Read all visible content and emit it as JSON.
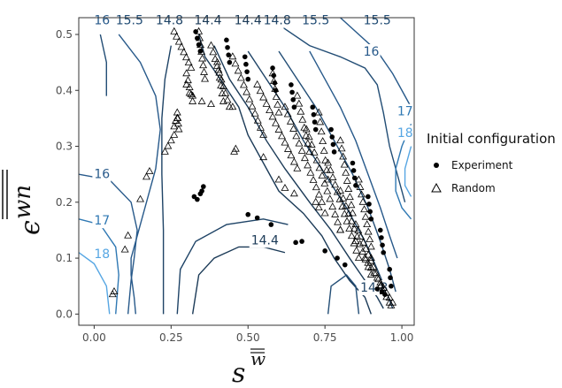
{
  "chart_data": {
    "type": "scatter",
    "title": "",
    "xlabel_base": "s",
    "xlabel_super": "w",
    "ylabel_base": "ϵ",
    "ylabel_super": "wn",
    "xlim": [
      -0.05,
      1.04
    ],
    "ylim": [
      -0.02,
      0.53
    ],
    "x_ticks": [
      0.0,
      0.25,
      0.5,
      0.75,
      1.0
    ],
    "x_tick_labels": [
      "0.00",
      "0.25",
      "0.50",
      "0.75",
      "1.00"
    ],
    "y_ticks": [
      0.0,
      0.1,
      0.2,
      0.3,
      0.4,
      0.5
    ],
    "y_tick_labels": [
      "0.0",
      "0.1",
      "0.2",
      "0.3",
      "0.4",
      "0.5"
    ],
    "grid": false,
    "legend": {
      "title": "Initial configuration",
      "placement": "right",
      "entries": [
        {
          "label": "Experiment",
          "marker": "filled-circle"
        },
        {
          "label": "Random",
          "marker": "open-triangle"
        }
      ]
    },
    "contour_levels": [
      14.4,
      14.8,
      15.5,
      16,
      17,
      18
    ],
    "contour_colors": {
      "14.4": "#1b3a57",
      "14.8": "#1e4366",
      "15.5": "#224d75",
      "16": "#27598a",
      "17": "#2f78b3",
      "18": "#56a6e3"
    },
    "contour_lines": [
      {
        "level": 15.5,
        "points": [
          [
            0.02,
            0.5
          ],
          [
            0.04,
            0.45
          ],
          [
            0.04,
            0.39
          ]
        ]
      },
      {
        "level": 16,
        "points": [
          [
            0.08,
            0.5
          ],
          [
            0.15,
            0.45
          ],
          [
            0.2,
            0.39
          ],
          [
            0.215,
            0.33
          ],
          [
            0.2,
            0.26
          ],
          [
            0.17,
            0.2
          ],
          [
            0.14,
            0.14
          ],
          [
            0.12,
            0.1
          ],
          [
            0.12,
            0.07
          ],
          [
            0.13,
            0.03
          ],
          [
            0.135,
            0.0
          ]
        ]
      },
      {
        "level": 14.8,
        "points": [
          [
            0.25,
            0.48
          ],
          [
            0.23,
            0.42
          ],
          [
            0.22,
            0.35
          ],
          [
            0.22,
            0.25
          ],
          [
            0.225,
            0.15
          ],
          [
            0.225,
            0.05
          ],
          [
            0.225,
            0.0
          ]
        ]
      },
      {
        "level": 14.4,
        "points": [
          [
            0.34,
            0.5
          ],
          [
            0.36,
            0.46
          ],
          [
            0.41,
            0.42
          ],
          [
            0.47,
            0.37
          ],
          [
            0.5,
            0.32
          ],
          [
            0.55,
            0.27
          ],
          [
            0.6,
            0.22
          ],
          [
            0.68,
            0.18
          ],
          [
            0.74,
            0.14
          ],
          [
            0.78,
            0.1
          ],
          [
            0.83,
            0.06
          ],
          [
            0.88,
            0.03
          ],
          [
            0.9,
            0.0
          ]
        ]
      },
      {
        "level": 14.4,
        "points": [
          [
            0.39,
            0.48
          ],
          [
            0.44,
            0.42
          ],
          [
            0.5,
            0.37
          ],
          [
            0.56,
            0.31
          ],
          [
            0.62,
            0.26
          ],
          [
            0.7,
            0.2
          ],
          [
            0.77,
            0.15
          ],
          [
            0.83,
            0.1
          ],
          [
            0.88,
            0.06
          ],
          [
            0.92,
            0.03
          ],
          [
            0.94,
            0.01
          ]
        ]
      },
      {
        "level": 14.8,
        "points": [
          [
            0.5,
            0.47
          ],
          [
            0.56,
            0.42
          ],
          [
            0.62,
            0.37
          ],
          [
            0.68,
            0.31
          ],
          [
            0.75,
            0.25
          ],
          [
            0.82,
            0.19
          ],
          [
            0.88,
            0.13
          ],
          [
            0.92,
            0.08
          ],
          [
            0.95,
            0.04
          ],
          [
            0.97,
            0.01
          ]
        ]
      },
      {
        "level": 15.5,
        "points": [
          [
            0.6,
            0.47
          ],
          [
            0.66,
            0.42
          ],
          [
            0.72,
            0.37
          ],
          [
            0.78,
            0.31
          ],
          [
            0.84,
            0.25
          ],
          [
            0.89,
            0.19
          ],
          [
            0.93,
            0.13
          ],
          [
            0.96,
            0.08
          ],
          [
            0.98,
            0.04
          ]
        ]
      },
      {
        "level": 16,
        "points": [
          [
            0.7,
            0.47
          ],
          [
            0.75,
            0.42
          ],
          [
            0.8,
            0.37
          ],
          [
            0.85,
            0.31
          ],
          [
            0.89,
            0.25
          ],
          [
            0.93,
            0.19
          ],
          [
            0.96,
            0.14
          ],
          [
            0.985,
            0.1
          ]
        ]
      },
      {
        "level": 15.5,
        "points": [
          [
            0.58,
            0.535
          ],
          [
            0.62,
            0.51
          ],
          [
            0.7,
            0.48
          ],
          [
            0.8,
            0.46
          ],
          [
            0.88,
            0.44
          ],
          [
            0.92,
            0.41
          ],
          [
            0.94,
            0.36
          ],
          [
            0.96,
            0.3
          ],
          [
            0.99,
            0.24
          ],
          [
            1.01,
            0.2
          ]
        ]
      },
      {
        "level": 16,
        "points": [
          [
            0.8,
            0.535
          ],
          [
            0.86,
            0.5
          ],
          [
            0.92,
            0.47
          ],
          [
            0.97,
            0.43
          ],
          [
            1.0,
            0.4
          ],
          [
            1.03,
            0.37
          ]
        ]
      },
      {
        "level": 17,
        "points": [
          [
            1.03,
            0.34
          ],
          [
            1.0,
            0.3
          ],
          [
            0.98,
            0.26
          ],
          [
            0.98,
            0.22
          ],
          [
            1.0,
            0.19
          ],
          [
            1.03,
            0.17
          ]
        ]
      },
      {
        "level": 18,
        "points": [
          [
            1.03,
            0.3
          ],
          [
            1.01,
            0.26
          ],
          [
            1.01,
            0.23
          ],
          [
            1.03,
            0.21
          ]
        ]
      },
      {
        "level": 15.5,
        "points": [
          [
            0.76,
            0.0
          ],
          [
            0.77,
            0.05
          ],
          [
            0.82,
            0.07
          ],
          [
            0.85,
            0.05
          ],
          [
            0.86,
            0.0
          ]
        ]
      },
      {
        "level": 16,
        "points": [
          [
            -0.05,
            0.25
          ],
          [
            0.05,
            0.24
          ],
          [
            0.12,
            0.2
          ],
          [
            0.14,
            0.15
          ],
          [
            0.13,
            0.1
          ],
          [
            0.12,
            0.06
          ],
          [
            0.11,
            0.0
          ]
        ]
      },
      {
        "level": 17,
        "points": [
          [
            -0.05,
            0.17
          ],
          [
            0.02,
            0.16
          ],
          [
            0.07,
            0.12
          ],
          [
            0.08,
            0.07
          ],
          [
            0.07,
            0.0
          ]
        ]
      },
      {
        "level": 18,
        "points": [
          [
            -0.05,
            0.11
          ],
          [
            0.0,
            0.09
          ],
          [
            0.04,
            0.05
          ],
          [
            0.05,
            0.0
          ]
        ]
      },
      {
        "level": 14.8,
        "points": [
          [
            0.27,
            0.0
          ],
          [
            0.28,
            0.08
          ],
          [
            0.33,
            0.13
          ],
          [
            0.43,
            0.16
          ],
          [
            0.55,
            0.17
          ],
          [
            0.63,
            0.16
          ]
        ]
      },
      {
        "level": 14.4,
        "points": [
          [
            0.32,
            0.0
          ],
          [
            0.34,
            0.07
          ],
          [
            0.39,
            0.1
          ],
          [
            0.47,
            0.12
          ],
          [
            0.55,
            0.12
          ],
          [
            0.62,
            0.11
          ]
        ]
      }
    ],
    "contour_label_marks": [
      {
        "text": "16",
        "x": 0.0,
        "y": 0.518,
        "level": 16
      },
      {
        "text": "15.5",
        "x": 0.07,
        "y": 0.518,
        "level": 15.5
      },
      {
        "text": "14.8",
        "x": 0.2,
        "y": 0.518,
        "level": 14.8
      },
      {
        "text": "14.4",
        "x": 0.325,
        "y": 0.518,
        "level": 14.4
      },
      {
        "text": "14.4",
        "x": 0.455,
        "y": 0.518,
        "level": 14.4
      },
      {
        "text": "14.8",
        "x": 0.55,
        "y": 0.518,
        "level": 14.8
      },
      {
        "text": "15.5",
        "x": 0.675,
        "y": 0.518,
        "level": 15.5
      },
      {
        "text": "15.5",
        "x": 0.875,
        "y": 0.518,
        "level": 15.5
      },
      {
        "text": "16",
        "x": 0.875,
        "y": 0.462,
        "level": 16
      },
      {
        "text": "17",
        "x": 0.985,
        "y": 0.355,
        "level": 17
      },
      {
        "text": "18",
        "x": 0.985,
        "y": 0.317,
        "level": 18
      },
      {
        "text": "16",
        "x": 0.0,
        "y": 0.243,
        "level": 16
      },
      {
        "text": "17",
        "x": 0.0,
        "y": 0.16,
        "level": 17
      },
      {
        "text": "18",
        "x": 0.0,
        "y": 0.1,
        "level": 18
      },
      {
        "text": "14.4",
        "x": 0.51,
        "y": 0.125,
        "level": 14.4
      },
      {
        "text": "14.8",
        "x": 0.865,
        "y": 0.04,
        "level": 14.8
      }
    ],
    "series": [
      {
        "name": "Experiment",
        "marker": "filled-circle",
        "points": [
          [
            0.325,
            0.21
          ],
          [
            0.335,
            0.205
          ],
          [
            0.345,
            0.215
          ],
          [
            0.35,
            0.22
          ],
          [
            0.355,
            0.228
          ],
          [
            0.5,
            0.178
          ],
          [
            0.53,
            0.172
          ],
          [
            0.575,
            0.16
          ],
          [
            0.655,
            0.128
          ],
          [
            0.675,
            0.13
          ],
          [
            0.75,
            0.113
          ],
          [
            0.79,
            0.1
          ],
          [
            0.815,
            0.088
          ],
          [
            0.92,
            0.045
          ],
          [
            0.935,
            0.04
          ],
          [
            0.945,
            0.035
          ]
        ]
      },
      {
        "name": "Random",
        "marker": "open-triangle",
        "points": [
          [
            0.06,
            0.035
          ],
          [
            0.065,
            0.04
          ],
          [
            0.1,
            0.115
          ],
          [
            0.11,
            0.14
          ],
          [
            0.15,
            0.205
          ],
          [
            0.17,
            0.245
          ],
          [
            0.18,
            0.255
          ],
          [
            0.23,
            0.29
          ],
          [
            0.24,
            0.3
          ],
          [
            0.25,
            0.31
          ],
          [
            0.26,
            0.32
          ],
          [
            0.26,
            0.335
          ],
          [
            0.265,
            0.345
          ],
          [
            0.27,
            0.35
          ],
          [
            0.3,
            0.41
          ],
          [
            0.31,
            0.395
          ],
          [
            0.32,
            0.39
          ],
          [
            0.35,
            0.38
          ],
          [
            0.38,
            0.375
          ],
          [
            0.45,
            0.37
          ],
          [
            0.455,
            0.29
          ],
          [
            0.46,
            0.295
          ],
          [
            0.55,
            0.28
          ],
          [
            0.6,
            0.24
          ],
          [
            0.62,
            0.225
          ],
          [
            0.65,
            0.215
          ],
          [
            0.72,
            0.2
          ],
          [
            0.73,
            0.19
          ],
          [
            0.75,
            0.18
          ],
          [
            0.8,
            0.15
          ],
          [
            0.85,
            0.13
          ],
          [
            0.9,
            0.1
          ],
          [
            0.93,
            0.05
          ],
          [
            0.95,
            0.03
          ],
          [
            0.96,
            0.02
          ],
          [
            0.965,
            0.015
          ]
        ]
      }
    ],
    "random_clusters": [
      {
        "x0": 0.26,
        "y0": 0.505,
        "x1": 0.315,
        "y1": 0.44,
        "n": 8
      },
      {
        "x0": 0.34,
        "y0": 0.505,
        "x1": 0.36,
        "y1": 0.42,
        "n": 8
      },
      {
        "x0": 0.38,
        "y0": 0.48,
        "x1": 0.44,
        "y1": 0.37,
        "n": 10
      },
      {
        "x0": 0.45,
        "y0": 0.46,
        "x1": 0.55,
        "y1": 0.32,
        "n": 12
      },
      {
        "x0": 0.53,
        "y0": 0.41,
        "x1": 0.66,
        "y1": 0.26,
        "n": 14
      },
      {
        "x0": 0.62,
        "y0": 0.37,
        "x1": 0.74,
        "y1": 0.2,
        "n": 14
      },
      {
        "x0": 0.69,
        "y0": 0.33,
        "x1": 0.8,
        "y1": 0.15,
        "n": 14
      },
      {
        "x0": 0.76,
        "y0": 0.27,
        "x1": 0.86,
        "y1": 0.1,
        "n": 14
      },
      {
        "x0": 0.8,
        "y0": 0.22,
        "x1": 0.9,
        "y1": 0.07,
        "n": 12
      },
      {
        "x0": 0.85,
        "y0": 0.16,
        "x1": 0.94,
        "y1": 0.04,
        "n": 12
      },
      {
        "x0": 0.88,
        "y0": 0.1,
        "x1": 0.97,
        "y1": 0.02,
        "n": 10
      },
      {
        "x0": 0.3,
        "y0": 0.43,
        "x1": 0.32,
        "y1": 0.38,
        "n": 5
      },
      {
        "x0": 0.27,
        "y0": 0.36,
        "x1": 0.275,
        "y1": 0.33,
        "n": 4
      },
      {
        "x0": 0.4,
        "y0": 0.45,
        "x1": 0.42,
        "y1": 0.38,
        "n": 6
      },
      {
        "x0": 0.58,
        "y0": 0.43,
        "x1": 0.6,
        "y1": 0.36,
        "n": 6
      },
      {
        "x0": 0.66,
        "y0": 0.39,
        "x1": 0.7,
        "y1": 0.29,
        "n": 8
      },
      {
        "x0": 0.73,
        "y0": 0.36,
        "x1": 0.76,
        "y1": 0.24,
        "n": 8
      },
      {
        "x0": 0.8,
        "y0": 0.31,
        "x1": 0.84,
        "y1": 0.18,
        "n": 10
      },
      {
        "x0": 0.86,
        "y0": 0.24,
        "x1": 0.9,
        "y1": 0.12,
        "n": 10
      }
    ],
    "experiment_clusters": [
      {
        "x0": 0.33,
        "y0": 0.505,
        "x1": 0.345,
        "y1": 0.47,
        "n": 4
      },
      {
        "x0": 0.43,
        "y0": 0.49,
        "x1": 0.44,
        "y1": 0.45,
        "n": 4
      },
      {
        "x0": 0.49,
        "y0": 0.46,
        "x1": 0.5,
        "y1": 0.42,
        "n": 4
      },
      {
        "x0": 0.58,
        "y0": 0.44,
        "x1": 0.59,
        "y1": 0.4,
        "n": 4
      },
      {
        "x0": 0.64,
        "y0": 0.41,
        "x1": 0.65,
        "y1": 0.37,
        "n": 4
      },
      {
        "x0": 0.71,
        "y0": 0.37,
        "x1": 0.72,
        "y1": 0.33,
        "n": 4
      },
      {
        "x0": 0.77,
        "y0": 0.33,
        "x1": 0.78,
        "y1": 0.29,
        "n": 4
      },
      {
        "x0": 0.84,
        "y0": 0.27,
        "x1": 0.85,
        "y1": 0.23,
        "n": 4
      },
      {
        "x0": 0.89,
        "y0": 0.21,
        "x1": 0.9,
        "y1": 0.17,
        "n": 4
      },
      {
        "x0": 0.93,
        "y0": 0.15,
        "x1": 0.94,
        "y1": 0.11,
        "n": 4
      },
      {
        "x0": 0.96,
        "y0": 0.08,
        "x1": 0.965,
        "y1": 0.05,
        "n": 3
      }
    ],
    "colors": {
      "panel_border": "#333333",
      "axis_text": "#4d4d4d",
      "point": "#000000"
    }
  }
}
